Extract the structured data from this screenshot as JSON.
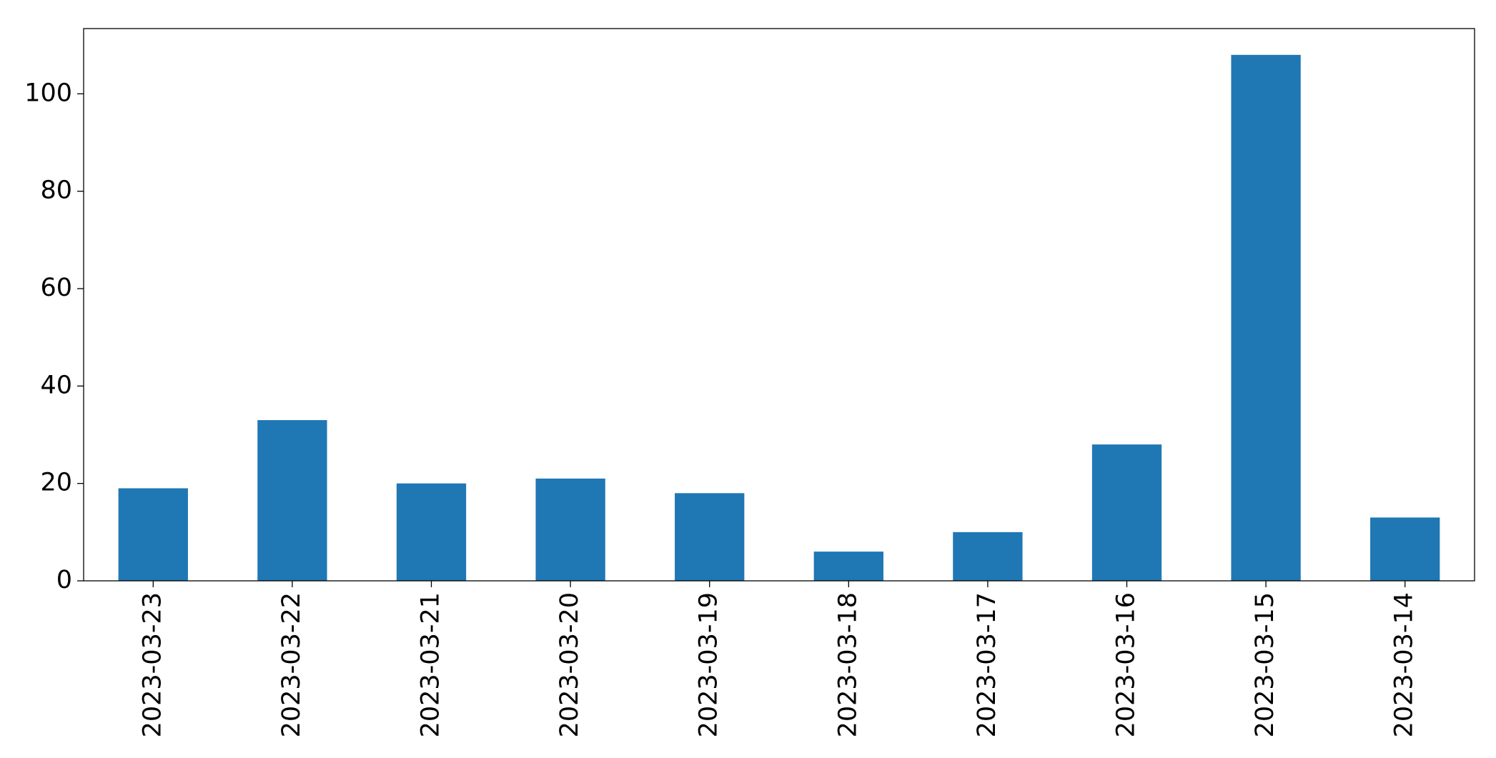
{
  "chart_data": {
    "type": "bar",
    "categories": [
      "2023-03-23",
      "2023-03-22",
      "2023-03-21",
      "2023-03-20",
      "2023-03-19",
      "2023-03-18",
      "2023-03-17",
      "2023-03-16",
      "2023-03-15",
      "2023-03-14"
    ],
    "values": [
      19,
      33,
      20,
      21,
      18,
      6,
      10,
      28,
      108,
      13
    ],
    "color": "#1f77b4",
    "ylim": [
      0,
      113.4
    ],
    "yticks": [
      0,
      20,
      40,
      60,
      80,
      100
    ],
    "grid": false
  }
}
